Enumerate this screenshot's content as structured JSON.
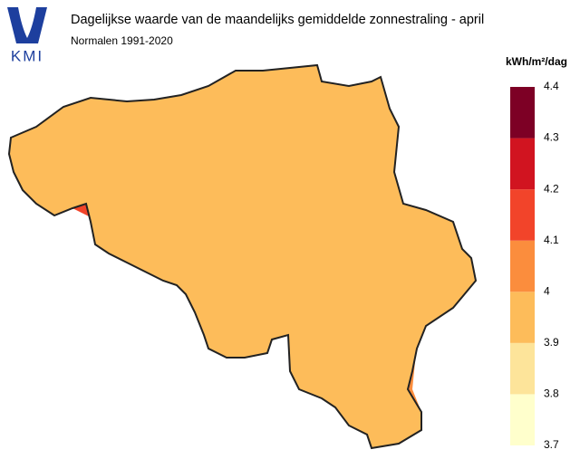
{
  "header": {
    "logo": "KMI",
    "title": "Dagelijkse waarde van de maandelijks gemiddelde zonnestraling - april",
    "subtitle": "Normalen 1991-2020"
  },
  "legend": {
    "unit": "kWh/m²/dag",
    "lim": [
      3.7,
      4.4
    ],
    "ticks": [
      3.7,
      3.8,
      3.9,
      4,
      4.1,
      4.2,
      4.3,
      4.4
    ],
    "bins": [
      {
        "from": 3.7,
        "to": 3.8,
        "color": "#ffffcc"
      },
      {
        "from": 3.8,
        "to": 3.9,
        "color": "#fde49a"
      },
      {
        "from": 3.9,
        "to": 4,
        "color": "#fdbc5a"
      },
      {
        "from": 4,
        "to": 4.1,
        "color": "#fb8d3d"
      },
      {
        "from": 4.1,
        "to": 4.2,
        "color": "#f2442a"
      },
      {
        "from": 4.2,
        "to": 4.3,
        "color": "#d11420"
      },
      {
        "from": 4.3,
        "to": 4.4,
        "color": "#7d0025"
      }
    ]
  }
}
